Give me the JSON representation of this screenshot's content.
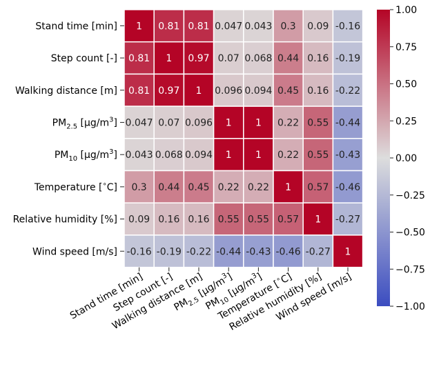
{
  "chart_data": {
    "type": "heatmap",
    "title": "",
    "row_labels": [
      {
        "pre": "Stand time [min]",
        "sub": "",
        "mid": "",
        "sup": "",
        "post": ""
      },
      {
        "pre": "Step count [-]",
        "sub": "",
        "mid": "",
        "sup": "",
        "post": ""
      },
      {
        "pre": "Walking distance [m]",
        "sub": "",
        "mid": "",
        "sup": "",
        "post": ""
      },
      {
        "pre": "PM",
        "sub": "2.5",
        "mid": " [μg/m",
        "sup": "3",
        "post": "]"
      },
      {
        "pre": "PM",
        "sub": "10",
        "mid": " [μg/m",
        "sup": "3",
        "post": "]"
      },
      {
        "pre": "Temperature [",
        "sub": "",
        "mid": "",
        "sup": "∘",
        "post": "C]"
      },
      {
        "pre": "Relative humidity [%]",
        "sub": "",
        "mid": "",
        "sup": "",
        "post": ""
      },
      {
        "pre": "Wind speed [m/s]",
        "sub": "",
        "mid": "",
        "sup": "",
        "post": ""
      }
    ],
    "values": [
      [
        "1",
        "0.81",
        "0.81",
        "0.047",
        "0.043",
        "0.3",
        "0.09",
        "-0.16"
      ],
      [
        "0.81",
        "1",
        "0.97",
        "0.07",
        "0.068",
        "0.44",
        "0.16",
        "-0.19"
      ],
      [
        "0.81",
        "0.97",
        "1",
        "0.096",
        "0.094",
        "0.45",
        "0.16",
        "-0.22"
      ],
      [
        "0.047",
        "0.07",
        "0.096",
        "1",
        "1",
        "0.22",
        "0.55",
        "-0.44"
      ],
      [
        "0.043",
        "0.068",
        "0.094",
        "1",
        "1",
        "0.22",
        "0.55",
        "-0.43"
      ],
      [
        "0.3",
        "0.44",
        "0.45",
        "0.22",
        "0.22",
        "1",
        "0.57",
        "-0.46"
      ],
      [
        "0.09",
        "0.16",
        "0.16",
        "0.55",
        "0.55",
        "0.57",
        "1",
        "-0.27"
      ],
      [
        "-0.16",
        "-0.19",
        "-0.22",
        "-0.44",
        "-0.43",
        "-0.46",
        "-0.27",
        "1"
      ]
    ],
    "colorbar": {
      "min": -1.0,
      "max": 1.0,
      "colormap": "coolwarm",
      "ticks": [
        "1.00",
        "0.75",
        "0.50",
        "0.25",
        "0.00",
        "−0.25",
        "−0.50",
        "−0.75",
        "−1.00"
      ],
      "tick_values": [
        1.0,
        0.75,
        0.5,
        0.25,
        0.0,
        -0.25,
        -0.5,
        -0.75,
        -1.0
      ]
    },
    "colors": {
      "low": "#3b4cc0",
      "mid": "#dddddd",
      "high": "#b40426",
      "cell_border": "#ffffff"
    },
    "grid": false,
    "legend": "right"
  }
}
